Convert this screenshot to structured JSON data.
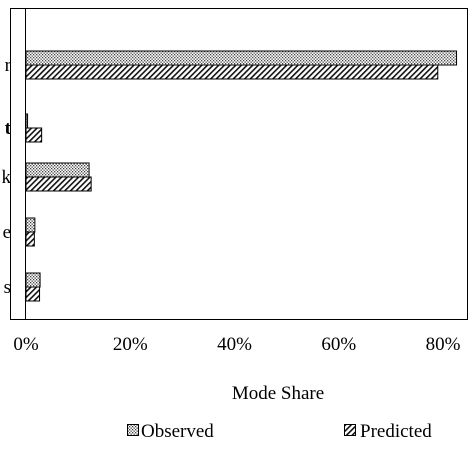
{
  "chart_data": {
    "type": "bar",
    "orientation": "horizontal",
    "categories": [
      "r",
      "t",
      "k",
      "e",
      "s"
    ],
    "series": [
      {
        "name": "Observed",
        "pattern": "dotted",
        "values": [
          0.826,
          0.003,
          0.121,
          0.017,
          0.027
        ]
      },
      {
        "name": "Predicted",
        "pattern": "hatched",
        "values": [
          0.79,
          0.03,
          0.125,
          0.016,
          0.026
        ]
      }
    ],
    "xlabel": "Mode Share",
    "xlim": [
      0,
      0.85
    ],
    "xticks": [
      {
        "value": 0,
        "label": "0%"
      },
      {
        "value": 0.2,
        "label": "20%"
      },
      {
        "value": 0.4,
        "label": "40%"
      },
      {
        "value": 0.6,
        "label": "60%"
      },
      {
        "value": 0.8,
        "label": "80%"
      }
    ],
    "grid": false,
    "legend_placement": "bottom"
  }
}
